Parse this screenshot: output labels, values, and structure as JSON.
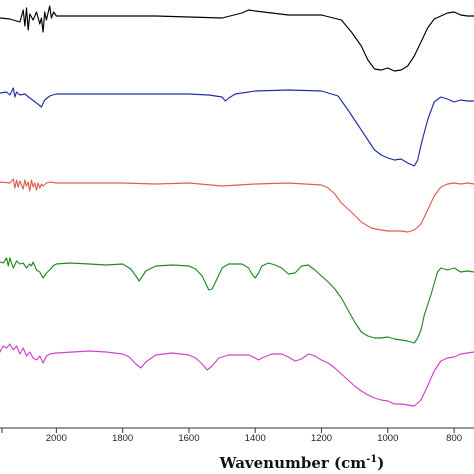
{
  "chart_data": {
    "type": "line",
    "xlabel": "Wavenumber (cm",
    "xlabel_sup": "-1",
    "xlabel_close": ")",
    "x_reversed": true,
    "xlim": [
      2170,
      740
    ],
    "x_ticks": [
      2000,
      1800,
      1600,
      1400,
      1200,
      1000,
      800
    ],
    "y_ticks_visible": false,
    "stacked": true,
    "series": [
      {
        "color": "#000000",
        "baseline": 16,
        "points": [
          [
            2170,
            18
          ],
          [
            2140,
            19
          ],
          [
            2110,
            22
          ],
          [
            2100,
            10
          ],
          [
            2095,
            26
          ],
          [
            2090,
            8
          ],
          [
            2085,
            30
          ],
          [
            2080,
            14
          ],
          [
            2070,
            20
          ],
          [
            2060,
            12
          ],
          [
            2050,
            24
          ],
          [
            2045,
            18
          ],
          [
            2040,
            32
          ],
          [
            2035,
            12
          ],
          [
            2030,
            20
          ],
          [
            2020,
            6
          ],
          [
            2015,
            18
          ],
          [
            2008,
            12
          ],
          [
            2000,
            16
          ],
          [
            1900,
            16
          ],
          [
            1800,
            16
          ],
          [
            1700,
            16
          ],
          [
            1600,
            17
          ],
          [
            1500,
            18
          ],
          [
            1440,
            13
          ],
          [
            1420,
            10
          ],
          [
            1400,
            11
          ],
          [
            1300,
            15
          ],
          [
            1200,
            15
          ],
          [
            1140,
            20
          ],
          [
            1110,
            32
          ],
          [
            1080,
            46
          ],
          [
            1060,
            60
          ],
          [
            1040,
            69
          ],
          [
            1020,
            70
          ],
          [
            1000,
            68
          ],
          [
            980,
            71
          ],
          [
            960,
            70
          ],
          [
            940,
            66
          ],
          [
            920,
            56
          ],
          [
            900,
            42
          ],
          [
            880,
            28
          ],
          [
            860,
            19
          ],
          [
            840,
            16
          ],
          [
            820,
            13
          ],
          [
            800,
            12
          ],
          [
            780,
            15
          ],
          [
            760,
            16
          ],
          [
            740,
            16
          ]
        ]
      },
      {
        "color": "#1f2ea3",
        "baseline": 93,
        "points": [
          [
            2170,
            93
          ],
          [
            2150,
            92
          ],
          [
            2140,
            95
          ],
          [
            2130,
            88
          ],
          [
            2125,
            97
          ],
          [
            2120,
            92
          ],
          [
            2110,
            95
          ],
          [
            2095,
            94
          ],
          [
            2080,
            98
          ],
          [
            2060,
            103
          ],
          [
            2045,
            107
          ],
          [
            2035,
            100
          ],
          [
            2020,
            96
          ],
          [
            2000,
            94
          ],
          [
            1900,
            94
          ],
          [
            1800,
            94
          ],
          [
            1700,
            94
          ],
          [
            1600,
            94
          ],
          [
            1540,
            95
          ],
          [
            1500,
            97
          ],
          [
            1490,
            101
          ],
          [
            1480,
            98
          ],
          [
            1460,
            94
          ],
          [
            1400,
            91
          ],
          [
            1300,
            90
          ],
          [
            1200,
            91
          ],
          [
            1150,
            96
          ],
          [
            1120,
            110
          ],
          [
            1090,
            125
          ],
          [
            1060,
            140
          ],
          [
            1040,
            150
          ],
          [
            1020,
            155
          ],
          [
            1000,
            158
          ],
          [
            980,
            160
          ],
          [
            960,
            159
          ],
          [
            940,
            163
          ],
          [
            920,
            166
          ],
          [
            910,
            160
          ],
          [
            900,
            145
          ],
          [
            880,
            120
          ],
          [
            860,
            102
          ],
          [
            840,
            97
          ],
          [
            820,
            99
          ],
          [
            800,
            102
          ],
          [
            780,
            100
          ],
          [
            760,
            101
          ],
          [
            740,
            101
          ]
        ]
      },
      {
        "color": "#d9604f",
        "baseline": 183,
        "points": [
          [
            2170,
            182
          ],
          [
            2140,
            183
          ],
          [
            2130,
            179
          ],
          [
            2125,
            188
          ],
          [
            2120,
            180
          ],
          [
            2115,
            187
          ],
          [
            2110,
            181
          ],
          [
            2100,
            189
          ],
          [
            2095,
            180
          ],
          [
            2090,
            186
          ],
          [
            2085,
            182
          ],
          [
            2080,
            191
          ],
          [
            2075,
            180
          ],
          [
            2070,
            187
          ],
          [
            2065,
            183
          ],
          [
            2060,
            190
          ],
          [
            2055,
            183
          ],
          [
            2050,
            188
          ],
          [
            2045,
            184
          ],
          [
            2040,
            186
          ],
          [
            2030,
            183
          ],
          [
            2020,
            182
          ],
          [
            2000,
            183
          ],
          [
            1900,
            183
          ],
          [
            1800,
            183
          ],
          [
            1700,
            184
          ],
          [
            1600,
            183
          ],
          [
            1500,
            186
          ],
          [
            1400,
            184
          ],
          [
            1300,
            183
          ],
          [
            1250,
            184
          ],
          [
            1200,
            185
          ],
          [
            1180,
            188
          ],
          [
            1160,
            194
          ],
          [
            1140,
            203
          ],
          [
            1110,
            212
          ],
          [
            1080,
            222
          ],
          [
            1050,
            228
          ],
          [
            1020,
            230
          ],
          [
            1000,
            231
          ],
          [
            980,
            231
          ],
          [
            960,
            231
          ],
          [
            940,
            232
          ],
          [
            920,
            230
          ],
          [
            900,
            224
          ],
          [
            880,
            210
          ],
          [
            860,
            196
          ],
          [
            840,
            187
          ],
          [
            820,
            184
          ],
          [
            800,
            183
          ],
          [
            780,
            184
          ],
          [
            760,
            183
          ],
          [
            740,
            184
          ]
        ]
      },
      {
        "color": "#1f8a1f",
        "baseline": 262,
        "points": [
          [
            2170,
            262
          ],
          [
            2160,
            263
          ],
          [
            2150,
            258
          ],
          [
            2145,
            266
          ],
          [
            2140,
            258
          ],
          [
            2130,
            268
          ],
          [
            2120,
            261
          ],
          [
            2110,
            264
          ],
          [
            2100,
            263
          ],
          [
            2090,
            268
          ],
          [
            2080,
            264
          ],
          [
            2075,
            266
          ],
          [
            2070,
            262
          ],
          [
            2060,
            270
          ],
          [
            2050,
            272
          ],
          [
            2040,
            278
          ],
          [
            2030,
            273
          ],
          [
            2020,
            270
          ],
          [
            2010,
            266
          ],
          [
            2000,
            264
          ],
          [
            1960,
            263
          ],
          [
            1900,
            264
          ],
          [
            1850,
            265
          ],
          [
            1800,
            264
          ],
          [
            1775,
            269
          ],
          [
            1760,
            276
          ],
          [
            1750,
            281
          ],
          [
            1740,
            276
          ],
          [
            1730,
            271
          ],
          [
            1700,
            266
          ],
          [
            1650,
            265
          ],
          [
            1600,
            266
          ],
          [
            1580,
            269
          ],
          [
            1560,
            276
          ],
          [
            1550,
            283
          ],
          [
            1540,
            290
          ],
          [
            1530,
            289
          ],
          [
            1520,
            282
          ],
          [
            1500,
            268
          ],
          [
            1480,
            264
          ],
          [
            1460,
            264
          ],
          [
            1440,
            264
          ],
          [
            1420,
            268
          ],
          [
            1410,
            274
          ],
          [
            1400,
            278
          ],
          [
            1390,
            273
          ],
          [
            1380,
            266
          ],
          [
            1360,
            263
          ],
          [
            1340,
            265
          ],
          [
            1320,
            268
          ],
          [
            1300,
            274
          ],
          [
            1280,
            273
          ],
          [
            1260,
            266
          ],
          [
            1240,
            265
          ],
          [
            1220,
            270
          ],
          [
            1200,
            276
          ],
          [
            1180,
            282
          ],
          [
            1160,
            289
          ],
          [
            1140,
            298
          ],
          [
            1120,
            310
          ],
          [
            1100,
            322
          ],
          [
            1080,
            332
          ],
          [
            1060,
            336
          ],
          [
            1040,
            338
          ],
          [
            1020,
            338
          ],
          [
            1000,
            337
          ],
          [
            980,
            339
          ],
          [
            960,
            340
          ],
          [
            940,
            341
          ],
          [
            920,
            343
          ],
          [
            910,
            338
          ],
          [
            900,
            330
          ],
          [
            890,
            315
          ],
          [
            870,
            295
          ],
          [
            850,
            272
          ],
          [
            840,
            268
          ],
          [
            820,
            270
          ],
          [
            800,
            268
          ],
          [
            780,
            272
          ],
          [
            760,
            271
          ],
          [
            740,
            272
          ]
        ]
      },
      {
        "color": "#cc44cc",
        "baseline": 350,
        "points": [
          [
            2170,
            352
          ],
          [
            2160,
            346
          ],
          [
            2150,
            348
          ],
          [
            2140,
            344
          ],
          [
            2130,
            350
          ],
          [
            2120,
            346
          ],
          [
            2110,
            354
          ],
          [
            2100,
            348
          ],
          [
            2090,
            356
          ],
          [
            2080,
            352
          ],
          [
            2070,
            358
          ],
          [
            2060,
            360
          ],
          [
            2050,
            356
          ],
          [
            2040,
            363
          ],
          [
            2030,
            356
          ],
          [
            2020,
            354
          ],
          [
            2000,
            353
          ],
          [
            1950,
            352
          ],
          [
            1900,
            351
          ],
          [
            1850,
            352
          ],
          [
            1800,
            354
          ],
          [
            1780,
            357
          ],
          [
            1760,
            364
          ],
          [
            1745,
            368
          ],
          [
            1730,
            362
          ],
          [
            1700,
            355
          ],
          [
            1650,
            353
          ],
          [
            1600,
            355
          ],
          [
            1580,
            358
          ],
          [
            1560,
            364
          ],
          [
            1545,
            370
          ],
          [
            1530,
            366
          ],
          [
            1510,
            358
          ],
          [
            1480,
            355
          ],
          [
            1450,
            355
          ],
          [
            1420,
            355
          ],
          [
            1400,
            358
          ],
          [
            1390,
            360
          ],
          [
            1380,
            358
          ],
          [
            1350,
            354
          ],
          [
            1320,
            354
          ],
          [
            1300,
            357
          ],
          [
            1280,
            361
          ],
          [
            1260,
            359
          ],
          [
            1240,
            354
          ],
          [
            1220,
            356
          ],
          [
            1200,
            360
          ],
          [
            1180,
            363
          ],
          [
            1160,
            368
          ],
          [
            1140,
            374
          ],
          [
            1120,
            380
          ],
          [
            1100,
            386
          ],
          [
            1080,
            391
          ],
          [
            1060,
            395
          ],
          [
            1040,
            398
          ],
          [
            1020,
            400
          ],
          [
            1000,
            401
          ],
          [
            980,
            404
          ],
          [
            960,
            404
          ],
          [
            940,
            405
          ],
          [
            920,
            406
          ],
          [
            900,
            400
          ],
          [
            880,
            386
          ],
          [
            860,
            371
          ],
          [
            840,
            361
          ],
          [
            820,
            358
          ],
          [
            800,
            357
          ],
          [
            780,
            354
          ],
          [
            760,
            353
          ],
          [
            740,
            352
          ]
        ]
      }
    ]
  }
}
